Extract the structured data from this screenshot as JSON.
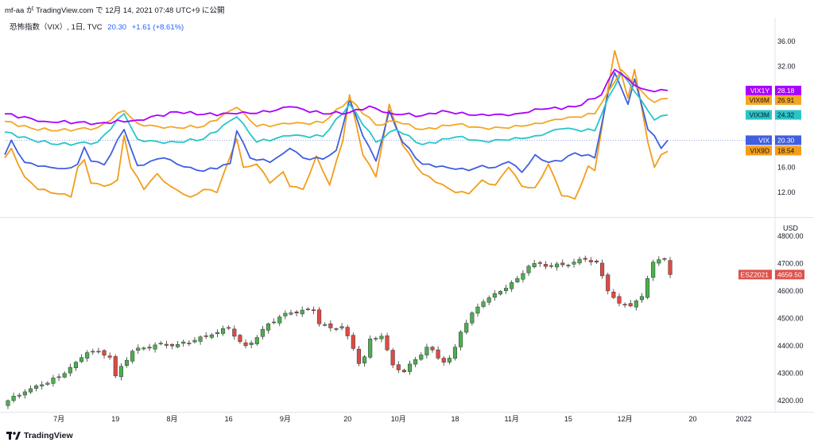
{
  "header": {
    "author": "mf-aa",
    "connector": "が",
    "site": "TradingView.com",
    "date_text": "で 12月 14, 2021 07:48 UTC+9 に公開"
  },
  "legend": {
    "symbol": "恐怖指数（VIX）, 1日, TVC",
    "value": "20.30",
    "change": "+1.61 (+8.61%)"
  },
  "footer": {
    "brand": "TradingView"
  },
  "colors": {
    "vix1y": "#9c27b0",
    "vix6m": "#f5a623",
    "vix3m": "#29c5c9",
    "vix": "#3f5fe0",
    "vix9d": "#f29d1a",
    "up": "#26a69a",
    "down": "#ef5350",
    "up_candle": "#4caf50",
    "down_candle": "#e04a44"
  },
  "chart_data": [
    {
      "type": "line",
      "ylim": [
        8.5,
        38.5
      ],
      "y_ticks": [
        "36.00",
        "32.00",
        "28.00",
        "24.00",
        "20.00",
        "16.00",
        "12.00"
      ],
      "y_tick_values": [
        36,
        32,
        28,
        24,
        20,
        16,
        12
      ],
      "n_points": 101,
      "series": [
        {
          "name": "VIX1Y",
          "last": "28.18",
          "color": "#aa00ff",
          "badge_text": "#ffffff",
          "keys": [
            [
              0,
              24.5
            ],
            [
              6,
              23.3
            ],
            [
              14,
              23.0
            ],
            [
              20,
              23.5
            ],
            [
              26,
              24.8
            ],
            [
              30,
              24.4
            ],
            [
              35,
              24.5
            ],
            [
              40,
              24.8
            ],
            [
              43,
              25.6
            ],
            [
              48,
              24.5
            ],
            [
              52,
              24.7
            ],
            [
              55,
              25.7
            ],
            [
              58,
              24.6
            ],
            [
              63,
              24.2
            ],
            [
              66,
              25.0
            ],
            [
              70,
              24.3
            ],
            [
              73,
              24.2
            ],
            [
              77,
              24.5
            ],
            [
              81,
              25.2
            ],
            [
              86,
              25.6
            ],
            [
              90,
              27.5
            ],
            [
              92,
              31.5
            ],
            [
              94,
              30.0
            ],
            [
              96,
              28.5
            ],
            [
              98,
              28.0
            ],
            [
              100,
              28.18
            ]
          ]
        },
        {
          "name": "VIX6M",
          "last": "26.91",
          "color": "#f5a623",
          "badge_text": "#131722",
          "keys": [
            [
              0,
              23.3
            ],
            [
              4,
              22.2
            ],
            [
              8,
              21.8
            ],
            [
              14,
              22.3
            ],
            [
              18,
              25.0
            ],
            [
              20,
              23.0
            ],
            [
              24,
              22.2
            ],
            [
              30,
              22.5
            ],
            [
              35,
              25.5
            ],
            [
              38,
              22.5
            ],
            [
              43,
              22.9
            ],
            [
              48,
              23.1
            ],
            [
              52,
              26.8
            ],
            [
              56,
              22.7
            ],
            [
              59,
              23.3
            ],
            [
              63,
              22.0
            ],
            [
              68,
              22.8
            ],
            [
              72,
              22.3
            ],
            [
              76,
              22.2
            ],
            [
              80,
              23.0
            ],
            [
              84,
              23.6
            ],
            [
              89,
              24.5
            ],
            [
              91,
              28.0
            ],
            [
              93,
              31.5
            ],
            [
              95,
              29.0
            ],
            [
              97,
              27.0
            ],
            [
              98,
              26.3
            ],
            [
              100,
              26.91
            ]
          ]
        },
        {
          "name": "VIX3M",
          "last": "24.32",
          "color": "#29c5c9",
          "badge_text": "#131722",
          "keys": [
            [
              0,
              21.6
            ],
            [
              4,
              20.4
            ],
            [
              8,
              19.6
            ],
            [
              14,
              20.0
            ],
            [
              18,
              24.5
            ],
            [
              20,
              20.5
            ],
            [
              24,
              19.8
            ],
            [
              30,
              20.5
            ],
            [
              35,
              24.0
            ],
            [
              38,
              20.0
            ],
            [
              43,
              21.0
            ],
            [
              48,
              20.9
            ],
            [
              52,
              26.0
            ],
            [
              56,
              20.0
            ],
            [
              59,
              22.0
            ],
            [
              63,
              19.6
            ],
            [
              68,
              20.8
            ],
            [
              72,
              20.2
            ],
            [
              76,
              20.3
            ],
            [
              80,
              21.0
            ],
            [
              84,
              22.1
            ],
            [
              89,
              21.8
            ],
            [
              91,
              27.0
            ],
            [
              93,
              31.0
            ],
            [
              95,
              28.0
            ],
            [
              97,
              25.0
            ],
            [
              98,
              23.5
            ],
            [
              100,
              24.32
            ]
          ]
        },
        {
          "name": "VIX",
          "last": "20.30",
          "color": "#3f5fe0",
          "badge_text": "#ffffff",
          "keys": [
            [
              0,
              18.0
            ],
            [
              1,
              20.3
            ],
            [
              3,
              16.8
            ],
            [
              6,
              16.2
            ],
            [
              9,
              15.8
            ],
            [
              11,
              16.5
            ],
            [
              12,
              19.2
            ],
            [
              13,
              17.0
            ],
            [
              15,
              16.4
            ],
            [
              18,
              22.0
            ],
            [
              20,
              16.3
            ],
            [
              24,
              17.5
            ],
            [
              26,
              16.5
            ],
            [
              28,
              16.0
            ],
            [
              30,
              15.4
            ],
            [
              34,
              16.6
            ],
            [
              35,
              21.8
            ],
            [
              37,
              17.5
            ],
            [
              40,
              16.8
            ],
            [
              42,
              18.2
            ],
            [
              43,
              19.0
            ],
            [
              45,
              17.5
            ],
            [
              48,
              17.3
            ],
            [
              50,
              18.7
            ],
            [
              52,
              26.8
            ],
            [
              54,
              21.0
            ],
            [
              56,
              17.0
            ],
            [
              58,
              25.0
            ],
            [
              60,
              20.0
            ],
            [
              63,
              16.5
            ],
            [
              66,
              16.2
            ],
            [
              68,
              15.7
            ],
            [
              70,
              15.5
            ],
            [
              72,
              16.3
            ],
            [
              74,
              16.0
            ],
            [
              76,
              16.9
            ],
            [
              78,
              15.2
            ],
            [
              80,
              18.0
            ],
            [
              82,
              16.8
            ],
            [
              84,
              17.0
            ],
            [
              86,
              18.3
            ],
            [
              89,
              17.5
            ],
            [
              91,
              27.8
            ],
            [
              92,
              31.0
            ],
            [
              94,
              26.0
            ],
            [
              95,
              30.0
            ],
            [
              97,
              22.0
            ],
            [
              98,
              21.0
            ],
            [
              99,
              19.0
            ],
            [
              100,
              20.3
            ]
          ]
        },
        {
          "name": "VIX9D",
          "last": "18.54",
          "color": "#f29d1a",
          "badge_text": "#131722",
          "keys": [
            [
              0,
              17.5
            ],
            [
              1,
              19.0
            ],
            [
              3,
              14.5
            ],
            [
              5,
              12.5
            ],
            [
              8,
              11.8
            ],
            [
              10,
              11.3
            ],
            [
              11,
              16.0
            ],
            [
              12,
              17.2
            ],
            [
              13,
              13.5
            ],
            [
              15,
              13.0
            ],
            [
              17,
              14.0
            ],
            [
              18,
              21.0
            ],
            [
              19,
              16.0
            ],
            [
              21,
              12.5
            ],
            [
              23,
              15.0
            ],
            [
              25,
              13.0
            ],
            [
              28,
              11.3
            ],
            [
              30,
              12.5
            ],
            [
              32,
              12.0
            ],
            [
              35,
              20.5
            ],
            [
              36,
              16.0
            ],
            [
              38,
              16.5
            ],
            [
              40,
              13.5
            ],
            [
              42,
              15.3
            ],
            [
              43,
              13.0
            ],
            [
              45,
              12.5
            ],
            [
              47,
              17.8
            ],
            [
              49,
              13.2
            ],
            [
              51,
              20.2
            ],
            [
              52,
              27.5
            ],
            [
              54,
              18.0
            ],
            [
              56,
              14.5
            ],
            [
              58,
              26.0
            ],
            [
              60,
              19.5
            ],
            [
              63,
              15.0
            ],
            [
              66,
              13.3
            ],
            [
              68,
              12.0
            ],
            [
              70,
              11.8
            ],
            [
              72,
              14.0
            ],
            [
              74,
              13.2
            ],
            [
              76,
              16.0
            ],
            [
              78,
              13.0
            ],
            [
              80,
              12.8
            ],
            [
              82,
              16.5
            ],
            [
              84,
              11.5
            ],
            [
              86,
              11.0
            ],
            [
              88,
              16.2
            ],
            [
              89,
              15.5
            ],
            [
              91,
              28.5
            ],
            [
              92,
              34.5
            ],
            [
              94,
              27.0
            ],
            [
              95,
              31.5
            ],
            [
              97,
              20.0
            ],
            [
              98,
              16.0
            ],
            [
              99,
              18.0
            ],
            [
              100,
              18.54
            ]
          ]
        }
      ]
    },
    {
      "type": "candlestick",
      "symbol": "ESZ2021",
      "last": "4659.50",
      "currency": "USD",
      "ylim": [
        4165,
        4820
      ],
      "y_ticks": [
        "4800.00",
        "4700.00",
        "4600.00",
        "4500.00",
        "4400.00",
        "4300.00",
        "4200.00"
      ],
      "y_tick_values": [
        4800,
        4700,
        4600,
        4500,
        4400,
        4300,
        4200
      ],
      "x_ticks": [
        "7月",
        "19",
        "8月",
        "16",
        "9月",
        "20",
        "10月",
        "18",
        "11月",
        "15",
        "12月",
        "20",
        "2022"
      ],
      "x_tick_index": [
        9,
        19,
        29,
        39,
        49,
        60,
        69,
        79,
        89,
        99,
        109,
        121,
        130
      ],
      "closes_keys": [
        [
          0,
          4200
        ],
        [
          3,
          4232
        ],
        [
          6,
          4258
        ],
        [
          9,
          4287
        ],
        [
          12,
          4340
        ],
        [
          14,
          4375
        ],
        [
          16,
          4380
        ],
        [
          18,
          4358
        ],
        [
          19,
          4290
        ],
        [
          20,
          4325
        ],
        [
          22,
          4380
        ],
        [
          26,
          4403
        ],
        [
          30,
          4405
        ],
        [
          33,
          4420
        ],
        [
          36,
          4440
        ],
        [
          39,
          4465
        ],
        [
          41,
          4415
        ],
        [
          42,
          4400
        ],
        [
          44,
          4430
        ],
        [
          46,
          4480
        ],
        [
          48,
          4505
        ],
        [
          50,
          4520
        ],
        [
          52,
          4530
        ],
        [
          54,
          4528
        ],
        [
          55,
          4480
        ],
        [
          57,
          4465
        ],
        [
          59,
          4470
        ],
        [
          61,
          4390
        ],
        [
          62,
          4335
        ],
        [
          63,
          4360
        ],
        [
          64,
          4425
        ],
        [
          66,
          4435
        ],
        [
          67,
          4385
        ],
        [
          68,
          4330
        ],
        [
          70,
          4305
        ],
        [
          72,
          4350
        ],
        [
          74,
          4395
        ],
        [
          75,
          4385
        ],
        [
          76,
          4355
        ],
        [
          77,
          4340
        ],
        [
          78,
          4355
        ],
        [
          79,
          4395
        ],
        [
          80,
          4450
        ],
        [
          82,
          4520
        ],
        [
          84,
          4560
        ],
        [
          86,
          4590
        ],
        [
          88,
          4610
        ],
        [
          90,
          4645
        ],
        [
          92,
          4690
        ],
        [
          94,
          4700
        ],
        [
          96,
          4690
        ],
        [
          98,
          4695
        ],
        [
          100,
          4705
        ],
        [
          102,
          4715
        ],
        [
          104,
          4705
        ],
        [
          105,
          4655
        ],
        [
          106,
          4600
        ],
        [
          108,
          4555
        ],
        [
          110,
          4545
        ],
        [
          112,
          4580
        ],
        [
          113,
          4645
        ],
        [
          114,
          4705
        ],
        [
          116,
          4715
        ],
        [
          117,
          4659.5
        ]
      ]
    }
  ]
}
